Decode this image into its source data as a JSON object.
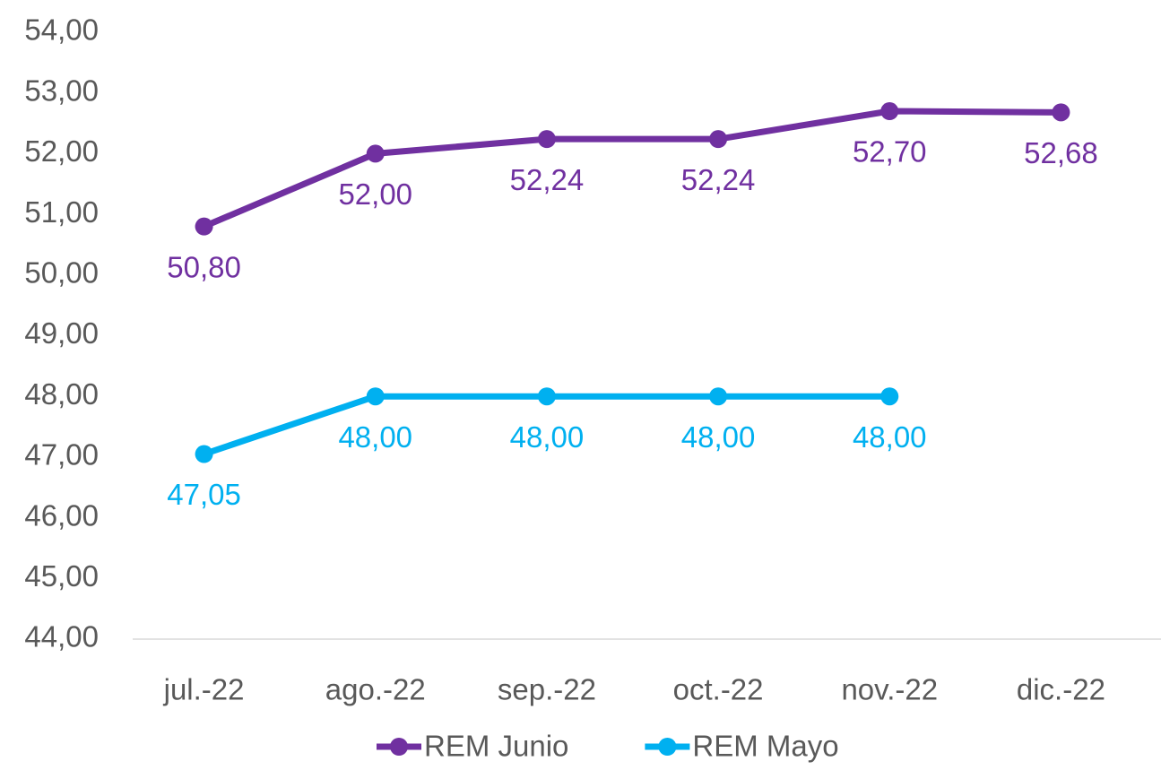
{
  "chart_data": {
    "type": "line",
    "categories": [
      "jul.-22",
      "ago.-22",
      "sep.-22",
      "oct.-22",
      "nov.-22",
      "dic.-22"
    ],
    "series": [
      {
        "name": "REM Junio",
        "color": "#7030a0",
        "values": [
          50.8,
          52.0,
          52.24,
          52.24,
          52.7,
          52.68
        ],
        "value_labels": [
          "50,80",
          "52,00",
          "52,24",
          "52,24",
          "52,70",
          "52,68"
        ]
      },
      {
        "name": "REM Mayo",
        "color": "#00b0f0",
        "values": [
          47.05,
          48.0,
          48.0,
          48.0,
          48.0,
          null
        ],
        "value_labels": [
          "47,05",
          "48,00",
          "48,00",
          "48,00",
          "48,00",
          null
        ]
      }
    ],
    "ylim": [
      44,
      54
    ],
    "yticks": [
      {
        "value": 44,
        "label": "44,00"
      },
      {
        "value": 45,
        "label": "45,00"
      },
      {
        "value": 46,
        "label": "46,00"
      },
      {
        "value": 47,
        "label": "47,00"
      },
      {
        "value": 48,
        "label": "48,00"
      },
      {
        "value": 49,
        "label": "49,00"
      },
      {
        "value": 50,
        "label": "50,00"
      },
      {
        "value": 51,
        "label": "51,00"
      },
      {
        "value": 52,
        "label": "52,00"
      },
      {
        "value": 53,
        "label": "53,00"
      },
      {
        "value": 54,
        "label": "54,00"
      }
    ],
    "grid": false,
    "legend": "bottom"
  }
}
